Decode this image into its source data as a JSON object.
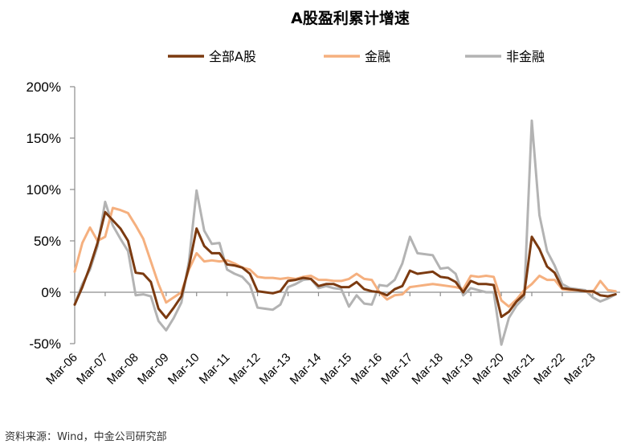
{
  "title": "A股盈利累计增速",
  "source": "资料来源：Wind，中金公司研究部",
  "chart_data": {
    "type": "line",
    "ylim": [
      -50,
      200
    ],
    "yticks": [
      -50,
      0,
      50,
      100,
      150,
      200
    ],
    "ytick_labels": [
      "-50%",
      "0%",
      "50%",
      "100%",
      "150%",
      "200%"
    ],
    "xlim": [
      2006.0,
      2023.9
    ],
    "xticks": [
      2006,
      2007,
      2008,
      2009,
      2010,
      2011,
      2012,
      2013,
      2014,
      2015,
      2016,
      2017,
      2018,
      2019,
      2020,
      2021,
      2022,
      2023
    ],
    "xtick_labels": [
      "Mar-06",
      "Mar-07",
      "Mar-08",
      "Mar-09",
      "Mar-10",
      "Mar-11",
      "Mar-12",
      "Mar-13",
      "Mar-14",
      "Mar-15",
      "Mar-16",
      "Mar-17",
      "Mar-18",
      "Mar-19",
      "Mar-20",
      "Mar-21",
      "Mar-22",
      "Mar-23"
    ],
    "legend_position": "top",
    "grid": false,
    "series": [
      {
        "name": "全部A股",
        "color": "#7b3a10",
        "points": [
          [
            2006.0,
            -12
          ],
          [
            2006.25,
            5
          ],
          [
            2006.5,
            25
          ],
          [
            2006.75,
            48
          ],
          [
            2007.0,
            78
          ],
          [
            2007.25,
            70
          ],
          [
            2007.5,
            62
          ],
          [
            2007.75,
            50
          ],
          [
            2008.0,
            19
          ],
          [
            2008.25,
            18
          ],
          [
            2008.5,
            10
          ],
          [
            2008.75,
            -16
          ],
          [
            2009.0,
            -25
          ],
          [
            2009.25,
            -15
          ],
          [
            2009.5,
            -4
          ],
          [
            2009.75,
            25
          ],
          [
            2010.0,
            62
          ],
          [
            2010.25,
            45
          ],
          [
            2010.5,
            38
          ],
          [
            2010.75,
            38
          ],
          [
            2011.0,
            27
          ],
          [
            2011.25,
            26
          ],
          [
            2011.5,
            24
          ],
          [
            2011.75,
            18
          ],
          [
            2012.0,
            1
          ],
          [
            2012.25,
            0
          ],
          [
            2012.5,
            -1
          ],
          [
            2012.75,
            1
          ],
          [
            2013.0,
            11
          ],
          [
            2013.25,
            12
          ],
          [
            2013.5,
            14
          ],
          [
            2013.75,
            13
          ],
          [
            2014.0,
            6
          ],
          [
            2014.25,
            8
          ],
          [
            2014.5,
            8
          ],
          [
            2014.75,
            5
          ],
          [
            2015.0,
            5
          ],
          [
            2015.25,
            10
          ],
          [
            2015.5,
            3
          ],
          [
            2015.75,
            1
          ],
          [
            2016.0,
            0
          ],
          [
            2016.25,
            -3
          ],
          [
            2016.5,
            3
          ],
          [
            2016.75,
            6
          ],
          [
            2017.0,
            21
          ],
          [
            2017.25,
            18
          ],
          [
            2017.5,
            19
          ],
          [
            2017.75,
            20
          ],
          [
            2018.0,
            15
          ],
          [
            2018.25,
            14
          ],
          [
            2018.5,
            10
          ],
          [
            2018.75,
            0
          ],
          [
            2019.0,
            11
          ],
          [
            2019.25,
            8
          ],
          [
            2019.5,
            8
          ],
          [
            2019.75,
            7
          ],
          [
            2020.0,
            -24
          ],
          [
            2020.25,
            -19
          ],
          [
            2020.5,
            -9
          ],
          [
            2020.75,
            -2
          ],
          [
            2021.0,
            54
          ],
          [
            2021.25,
            42
          ],
          [
            2021.5,
            25
          ],
          [
            2021.75,
            19
          ],
          [
            2022.0,
            4
          ],
          [
            2022.25,
            3
          ],
          [
            2022.5,
            2
          ],
          [
            2022.75,
            1
          ],
          [
            2023.0,
            1
          ],
          [
            2023.25,
            -3
          ],
          [
            2023.5,
            -4
          ],
          [
            2023.75,
            -2
          ]
        ]
      },
      {
        "name": "金融",
        "color": "#f5b07f",
        "points": [
          [
            2006.0,
            20
          ],
          [
            2006.25,
            48
          ],
          [
            2006.5,
            63
          ],
          [
            2006.75,
            50
          ],
          [
            2007.0,
            54
          ],
          [
            2007.25,
            82
          ],
          [
            2007.5,
            80
          ],
          [
            2007.75,
            77
          ],
          [
            2008.0,
            65
          ],
          [
            2008.25,
            52
          ],
          [
            2008.5,
            30
          ],
          [
            2008.75,
            8
          ],
          [
            2009.0,
            -10
          ],
          [
            2009.25,
            -5
          ],
          [
            2009.5,
            0
          ],
          [
            2009.75,
            22
          ],
          [
            2010.0,
            38
          ],
          [
            2010.25,
            30
          ],
          [
            2010.5,
            31
          ],
          [
            2010.75,
            30
          ],
          [
            2011.0,
            31
          ],
          [
            2011.25,
            28
          ],
          [
            2011.5,
            24
          ],
          [
            2011.75,
            22
          ],
          [
            2012.0,
            15
          ],
          [
            2012.25,
            14
          ],
          [
            2012.5,
            14
          ],
          [
            2012.75,
            13
          ],
          [
            2013.0,
            14
          ],
          [
            2013.25,
            13
          ],
          [
            2013.5,
            15
          ],
          [
            2013.75,
            16
          ],
          [
            2014.0,
            12
          ],
          [
            2014.25,
            12
          ],
          [
            2014.5,
            11
          ],
          [
            2014.75,
            11
          ],
          [
            2015.0,
            13
          ],
          [
            2015.25,
            18
          ],
          [
            2015.5,
            13
          ],
          [
            2015.75,
            12
          ],
          [
            2016.0,
            0
          ],
          [
            2016.25,
            -7
          ],
          [
            2016.5,
            -3
          ],
          [
            2016.75,
            -2
          ],
          [
            2017.0,
            5
          ],
          [
            2017.25,
            6
          ],
          [
            2017.5,
            7
          ],
          [
            2017.75,
            8
          ],
          [
            2018.0,
            7
          ],
          [
            2018.25,
            6
          ],
          [
            2018.5,
            5
          ],
          [
            2018.75,
            3
          ],
          [
            2019.0,
            16
          ],
          [
            2019.25,
            15
          ],
          [
            2019.5,
            16
          ],
          [
            2019.75,
            15
          ],
          [
            2020.0,
            -8
          ],
          [
            2020.25,
            -14
          ],
          [
            2020.5,
            -7
          ],
          [
            2020.75,
            2
          ],
          [
            2021.0,
            8
          ],
          [
            2021.25,
            16
          ],
          [
            2021.5,
            12
          ],
          [
            2021.75,
            12
          ],
          [
            2022.0,
            3
          ],
          [
            2022.25,
            2
          ],
          [
            2022.5,
            2
          ],
          [
            2022.75,
            1
          ],
          [
            2023.0,
            0
          ],
          [
            2023.25,
            11
          ],
          [
            2023.5,
            2
          ],
          [
            2023.75,
            1
          ]
        ]
      },
      {
        "name": "非金融",
        "color": "#b3b3b3",
        "points": [
          [
            2006.0,
            -12
          ],
          [
            2006.25,
            8
          ],
          [
            2006.5,
            22
          ],
          [
            2006.75,
            45
          ],
          [
            2007.0,
            88
          ],
          [
            2007.25,
            65
          ],
          [
            2007.5,
            52
          ],
          [
            2007.75,
            40
          ],
          [
            2008.0,
            -3
          ],
          [
            2008.25,
            -2
          ],
          [
            2008.5,
            -4
          ],
          [
            2008.75,
            -28
          ],
          [
            2009.0,
            -37
          ],
          [
            2009.25,
            -25
          ],
          [
            2009.5,
            -10
          ],
          [
            2009.75,
            30
          ],
          [
            2010.0,
            99
          ],
          [
            2010.25,
            60
          ],
          [
            2010.5,
            47
          ],
          [
            2010.75,
            48
          ],
          [
            2011.0,
            22
          ],
          [
            2011.25,
            18
          ],
          [
            2011.5,
            15
          ],
          [
            2011.75,
            7
          ],
          [
            2012.0,
            -15
          ],
          [
            2012.25,
            -16
          ],
          [
            2012.5,
            -17
          ],
          [
            2012.75,
            -12
          ],
          [
            2013.0,
            5
          ],
          [
            2013.25,
            8
          ],
          [
            2013.5,
            12
          ],
          [
            2013.75,
            13
          ],
          [
            2014.0,
            4
          ],
          [
            2014.25,
            6
          ],
          [
            2014.5,
            4
          ],
          [
            2014.75,
            3
          ],
          [
            2015.0,
            -14
          ],
          [
            2015.25,
            -3
          ],
          [
            2015.5,
            -11
          ],
          [
            2015.75,
            -12
          ],
          [
            2016.0,
            7
          ],
          [
            2016.25,
            6
          ],
          [
            2016.5,
            12
          ],
          [
            2016.75,
            28
          ],
          [
            2017.0,
            54
          ],
          [
            2017.25,
            38
          ],
          [
            2017.5,
            37
          ],
          [
            2017.75,
            36
          ],
          [
            2018.0,
            23
          ],
          [
            2018.25,
            24
          ],
          [
            2018.5,
            18
          ],
          [
            2018.75,
            -3
          ],
          [
            2019.0,
            4
          ],
          [
            2019.25,
            2
          ],
          [
            2019.5,
            0
          ],
          [
            2019.75,
            0
          ],
          [
            2020.0,
            -51
          ],
          [
            2020.25,
            -25
          ],
          [
            2020.5,
            -13
          ],
          [
            2020.75,
            -5
          ],
          [
            2021.0,
            167
          ],
          [
            2021.25,
            75
          ],
          [
            2021.5,
            40
          ],
          [
            2021.75,
            26
          ],
          [
            2022.0,
            8
          ],
          [
            2022.25,
            4
          ],
          [
            2022.5,
            3
          ],
          [
            2022.75,
            2
          ],
          [
            2023.0,
            -5
          ],
          [
            2023.25,
            -9
          ],
          [
            2023.5,
            -6
          ],
          [
            2023.75,
            -2
          ]
        ]
      }
    ]
  }
}
